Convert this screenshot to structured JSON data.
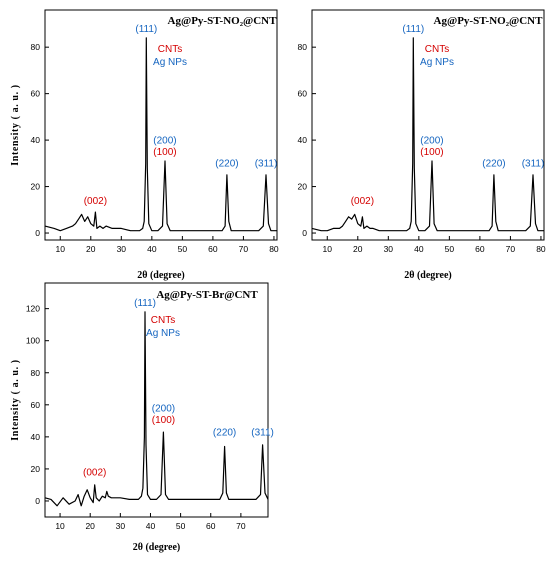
{
  "colors": {
    "cnt": "#d40000",
    "ag": "#1565c0",
    "line": "#000000"
  },
  "chart_data": [
    {
      "type": "line",
      "title": "Ag@Py-ST-NO₂@CNT",
      "xlabel": "2θ (degree)",
      "ylabel": "Intensity ( a. u. )",
      "xlim": [
        5,
        81
      ],
      "ylim": [
        -3,
        96
      ],
      "xticks": [
        10,
        20,
        30,
        40,
        50,
        60,
        70,
        80
      ],
      "yticks": [
        0,
        20,
        40,
        60,
        80
      ],
      "legend": {
        "position": "top-center",
        "entries": [
          {
            "label": "CNTs",
            "color": "cnt"
          },
          {
            "label": "Ag NPs",
            "color": "ag"
          }
        ]
      },
      "series": [
        {
          "x": [
            5,
            8,
            10,
            12,
            14,
            15,
            16,
            17,
            18,
            19,
            20,
            21,
            21.5,
            22,
            23,
            24,
            25,
            27,
            30,
            33,
            36,
            37,
            37.5,
            38,
            38.2,
            38.5,
            39,
            40,
            42,
            43.5,
            44.3,
            45,
            46,
            50,
            55,
            60,
            63,
            64,
            64.6,
            65.2,
            66,
            70,
            75,
            76.5,
            77.4,
            78.2,
            79,
            81
          ],
          "y": [
            3,
            2,
            1,
            2,
            3,
            4,
            6,
            8,
            5,
            7,
            4,
            3,
            9,
            2,
            3,
            2,
            3,
            2,
            2,
            1,
            1,
            2,
            5,
            30,
            84,
            28,
            4,
            1,
            1,
            3,
            31,
            4,
            1,
            1,
            1,
            1,
            1,
            3,
            25,
            5,
            1,
            1,
            1,
            3,
            25,
            4,
            1,
            1
          ]
        }
      ],
      "annotations": [
        {
          "text": "(111)",
          "x": 38.2,
          "y": 84,
          "color": "ag"
        },
        {
          "text": "(200)",
          "x": 44.3,
          "y": 36,
          "color": "ag"
        },
        {
          "text": "(100)",
          "x": 44.3,
          "y": 31,
          "color": "cnt"
        },
        {
          "text": "(002)",
          "x": 21.5,
          "y": 10,
          "color": "cnt"
        },
        {
          "text": "(220)",
          "x": 64.6,
          "y": 26,
          "color": "ag"
        },
        {
          "text": "(311)",
          "x": 77.4,
          "y": 26,
          "color": "ag"
        }
      ]
    },
    {
      "type": "line",
      "title": "Ag@Py-ST-NO₂@CNT",
      "xlabel": "2θ (degree)",
      "ylabel": "",
      "xlim": [
        5,
        81
      ],
      "ylim": [
        -3,
        96
      ],
      "xticks": [
        10,
        20,
        30,
        40,
        50,
        60,
        70,
        80
      ],
      "yticks": [
        0,
        20,
        40,
        60,
        80
      ],
      "legend": {
        "position": "top-center",
        "entries": [
          {
            "label": "CNTs",
            "color": "cnt"
          },
          {
            "label": "Ag NPs",
            "color": "ag"
          }
        ]
      },
      "series": [
        {
          "x": [
            5,
            8,
            10,
            12,
            14,
            15,
            16,
            17,
            18,
            19,
            20,
            21,
            21.5,
            22,
            23,
            24,
            25,
            27,
            30,
            33,
            36,
            37,
            37.5,
            38,
            38.2,
            38.5,
            39,
            40,
            42,
            43.5,
            44.3,
            45,
            46,
            50,
            55,
            60,
            63,
            64,
            64.6,
            65.2,
            66,
            70,
            75,
            76.5,
            77.4,
            78.2,
            79,
            81
          ],
          "y": [
            2,
            1,
            1,
            2,
            2,
            3,
            5,
            7,
            6,
            8,
            4,
            3,
            7,
            2,
            3,
            2,
            2,
            1,
            1,
            1,
            1,
            2,
            5,
            30,
            84,
            28,
            4,
            1,
            1,
            3,
            31,
            4,
            1,
            1,
            1,
            1,
            1,
            3,
            25,
            5,
            1,
            1,
            1,
            3,
            25,
            4,
            1,
            1
          ]
        }
      ],
      "annotations": [
        {
          "text": "(111)",
          "x": 38.2,
          "y": 84,
          "color": "ag"
        },
        {
          "text": "(200)",
          "x": 44.3,
          "y": 36,
          "color": "ag"
        },
        {
          "text": "(100)",
          "x": 44.3,
          "y": 31,
          "color": "cnt"
        },
        {
          "text": "(002)",
          "x": 21.5,
          "y": 10,
          "color": "cnt"
        },
        {
          "text": "(220)",
          "x": 64.6,
          "y": 26,
          "color": "ag"
        },
        {
          "text": "(311)",
          "x": 77.4,
          "y": 26,
          "color": "ag"
        }
      ]
    },
    {
      "type": "line",
      "title": "Ag@Py-ST-Br@CNT",
      "xlabel": "2θ (degree)",
      "ylabel": "Intensity ( a. u. )",
      "xlim": [
        5,
        79
      ],
      "ylim": [
        -10,
        136
      ],
      "xticks": [
        10,
        20,
        30,
        40,
        50,
        60,
        70
      ],
      "yticks": [
        0,
        20,
        40,
        60,
        80,
        100,
        120
      ],
      "legend": {
        "position": "top-center",
        "entries": [
          {
            "label": "CNTs",
            "color": "cnt"
          },
          {
            "label": "Ag NPs",
            "color": "ag"
          }
        ]
      },
      "series": [
        {
          "x": [
            5,
            7,
            9,
            11,
            13,
            15,
            16,
            17,
            18,
            19,
            20,
            21,
            21.5,
            22,
            23,
            24,
            25,
            25.5,
            26,
            27,
            30,
            33,
            36,
            37,
            37.5,
            38,
            38.2,
            38.5,
            39,
            40,
            42,
            43.5,
            44.3,
            45,
            46,
            50,
            55,
            60,
            63,
            64,
            64.6,
            65.2,
            66,
            70,
            75,
            76.5,
            77.2,
            78,
            79
          ],
          "y": [
            2,
            1,
            -3,
            2,
            -2,
            0,
            4,
            -3,
            3,
            7,
            2,
            -1,
            10,
            2,
            0,
            3,
            2,
            6,
            3,
            2,
            2,
            1,
            1,
            3,
            8,
            40,
            118,
            35,
            4,
            1,
            1,
            4,
            43,
            4,
            1,
            1,
            1,
            1,
            1,
            5,
            34,
            5,
            1,
            1,
            1,
            4,
            35,
            5,
            1
          ]
        }
      ],
      "annotations": [
        {
          "text": "(111)",
          "x": 38.2,
          "y": 118,
          "color": "ag"
        },
        {
          "text": "(200)",
          "x": 44.3,
          "y": 52,
          "color": "ag"
        },
        {
          "text": "(100)",
          "x": 44.3,
          "y": 45,
          "color": "cnt"
        },
        {
          "text": "(002)",
          "x": 21.5,
          "y": 12,
          "color": "cnt"
        },
        {
          "text": "(220)",
          "x": 64.6,
          "y": 37,
          "color": "ag"
        },
        {
          "text": "(311)",
          "x": 77.2,
          "y": 37,
          "color": "ag"
        }
      ]
    }
  ]
}
